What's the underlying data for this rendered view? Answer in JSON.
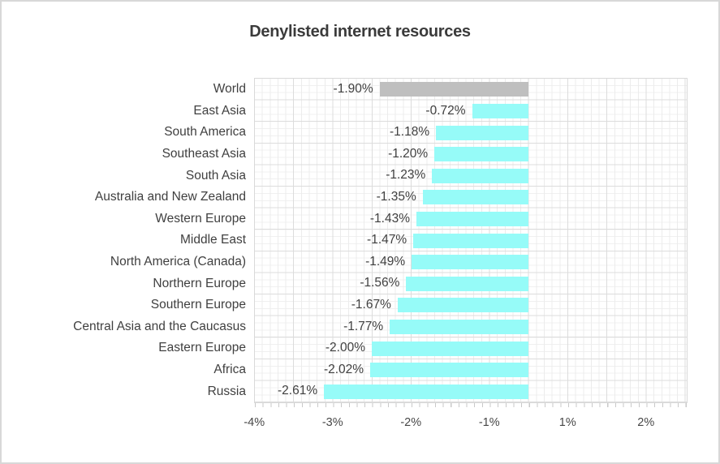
{
  "window": {
    "background": "#ffffff",
    "border_color": "#d8d8d8"
  },
  "chart_data": {
    "type": "bar",
    "orientation": "horizontal",
    "title": "Denylisted internet resources",
    "unit": "%",
    "grid": "on",
    "legend": "none",
    "categories": [
      "World",
      "East Asia",
      "South America",
      "Southeast Asia",
      "South Asia",
      "Australia and New Zealand",
      "Western Europe",
      "Middle East",
      "North America (Canada)",
      "Northern Europe",
      "Southern Europe",
      "Central Asia and the Caucasus",
      "Eastern Europe",
      "Africa",
      "Russia"
    ],
    "values": [
      -1.9,
      -0.72,
      -1.18,
      -1.2,
      -1.23,
      -1.35,
      -1.43,
      -1.47,
      -1.49,
      -1.56,
      -1.67,
      -1.77,
      -2.0,
      -2.02,
      -2.61
    ],
    "value_labels": [
      "-1.90%",
      "-0.72%",
      "-1.18%",
      "-1.20%",
      "-1.23%",
      "-1.35%",
      "-1.43%",
      "-1.47%",
      "-1.49%",
      "-1.56%",
      "-1.67%",
      "-1.77%",
      "-2.00%",
      "-2.02%",
      "-2.61%"
    ],
    "x_ticks": [
      {
        "label": "-4%",
        "value": -4
      },
      {
        "label": "-3%",
        "value": -3
      },
      {
        "label": "-2%",
        "value": -2
      },
      {
        "label": "-1%",
        "value": -1
      },
      {
        "label": "1%",
        "value": 1
      },
      {
        "label": "2%",
        "value": 2
      }
    ],
    "xlim": [
      -3.5,
      2
    ],
    "colors": {
      "bar": "#96FBF8",
      "world_bar": "#BFBFBF",
      "grid_minor": "#ececec",
      "grid_major": "#dcdcdc",
      "text": "#404040",
      "title_text": "#3b3b3b"
    },
    "highlighted_category": "World"
  }
}
